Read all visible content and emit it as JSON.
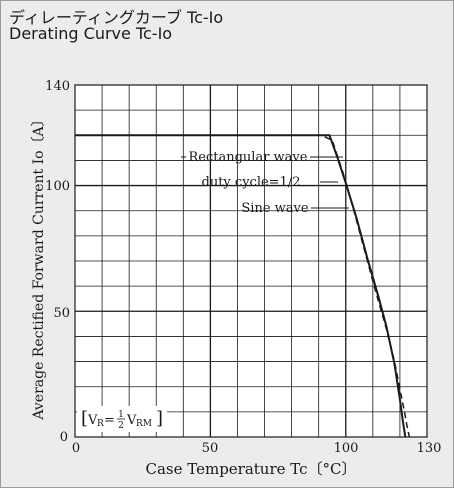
{
  "title_jp": "ディレーティングカーブ Tc-Io",
  "title_en": "Derating Curve Tc-Io",
  "chart_data": {
    "type": "line",
    "xlabel": "Case Temperature  Tc〔°C〕",
    "ylabel": "Average Rectified Forward Current  Io〔A〕",
    "xlim": [
      0,
      130
    ],
    "ylim": [
      0,
      140
    ],
    "x_ticks": [
      "0",
      "50",
      "100",
      "130"
    ],
    "y_ticks": [
      "50",
      "100",
      "140"
    ],
    "origin_label": "0",
    "grid": true,
    "series": [
      {
        "name": "Rectangular wave duty cycle=1/2",
        "style": "solid",
        "color": "#1a1a1a",
        "x": [
          0,
          91,
          94,
          97,
          100,
          104,
          108,
          112,
          115,
          118,
          120,
          121,
          122
        ],
        "y": [
          120,
          120,
          120,
          111,
          101,
          87,
          71,
          56,
          44,
          29,
          15,
          7,
          0
        ]
      },
      {
        "name": "Sine wave",
        "style": "dashed",
        "color": "#1a1a1a",
        "x": [
          0,
          91,
          95,
          99,
          103,
          107,
          111,
          115,
          118,
          120,
          121.5,
          122.5,
          123.5
        ],
        "y": [
          120,
          120,
          118,
          105,
          90,
          74,
          58,
          43,
          30,
          19,
          11,
          5,
          0
        ]
      }
    ],
    "annotations": [
      {
        "id": "rect-1",
        "text": "Rectangular wave"
      },
      {
        "id": "rect-2",
        "text": "duty cycle=1/2"
      },
      {
        "id": "sine",
        "text": "Sine wave"
      }
    ],
    "condition": {
      "lhs": "V",
      "lhs_sub": "R",
      "eq": "=",
      "num": "1",
      "den": "2",
      "rhs": "V",
      "rhs_sub": "RM"
    }
  }
}
